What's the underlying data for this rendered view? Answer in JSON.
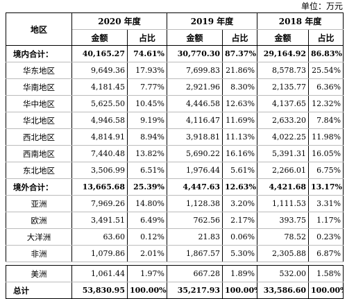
{
  "unit_label": "单位：万元",
  "header": {
    "region": "地区",
    "years": [
      "2020 年度",
      "2019 年度",
      "2018 年度"
    ],
    "amount": "金额",
    "share": "占比"
  },
  "rows": [
    {
      "name": "境内合计：",
      "v": [
        "40,165.27",
        "74.61%",
        "30,770.30",
        "87.37%",
        "29,164.92",
        "86.83%"
      ]
    },
    {
      "name": "华东地区",
      "v": [
        "9,649.36",
        "17.93%",
        "7,699.83",
        "21.86%",
        "8,578.73",
        "25.54%"
      ]
    },
    {
      "name": "华南地区",
      "v": [
        "4,181.45",
        "7.77%",
        "2,921.96",
        "8.30%",
        "2,135.77",
        "6.36%"
      ]
    },
    {
      "name": "华中地区",
      "v": [
        "5,625.50",
        "10.45%",
        "4,446.58",
        "12.63%",
        "4,137.65",
        "12.32%"
      ]
    },
    {
      "name": "华北地区",
      "v": [
        "4,946.58",
        "9.19%",
        "4,116.47",
        "11.69%",
        "2,633.20",
        "7.84%"
      ]
    },
    {
      "name": "西北地区",
      "v": [
        "4,814.91",
        "8.94%",
        "3,918.81",
        "11.13%",
        "4,022.25",
        "11.98%"
      ]
    },
    {
      "name": "西南地区",
      "v": [
        "7,440.48",
        "13.82%",
        "5,690.22",
        "16.16%",
        "5,391.31",
        "16.05%"
      ]
    },
    {
      "name": "东北地区",
      "v": [
        "3,506.99",
        "6.51%",
        "1,976.44",
        "5.61%",
        "2,266.01",
        "6.75%"
      ]
    },
    {
      "name": "境外合计：",
      "v": [
        "13,665.68",
        "25.39%",
        "4,447.63",
        "12.63%",
        "4,421.68",
        "13.17%"
      ]
    },
    {
      "name": "亚洲",
      "v": [
        "7,969.26",
        "14.80%",
        "1,128.38",
        "3.20%",
        "1,111.53",
        "3.31%"
      ]
    },
    {
      "name": "欧洲",
      "v": [
        "3,491.51",
        "6.49%",
        "762.56",
        "2.17%",
        "393.75",
        "1.17%"
      ]
    },
    {
      "name": "大洋洲",
      "v": [
        "63.60",
        "0.12%",
        "21.83",
        "0.06%",
        "78.52",
        "0.23%"
      ]
    },
    {
      "name": "非洲",
      "v": [
        "1,079.86",
        "2.01%",
        "1,867.57",
        "5.30%",
        "2,305.88",
        "6.87%"
      ]
    },
    {
      "name": "美洲",
      "v": [
        "1,061.44",
        "1.97%",
        "667.28",
        "1.89%",
        "532.00",
        "1.58%"
      ]
    },
    {
      "name": "总计",
      "v": [
        "53,830.95",
        "100.00%",
        "35,217.93",
        "100.00%",
        "33,586.60",
        "100.00%"
      ]
    }
  ]
}
